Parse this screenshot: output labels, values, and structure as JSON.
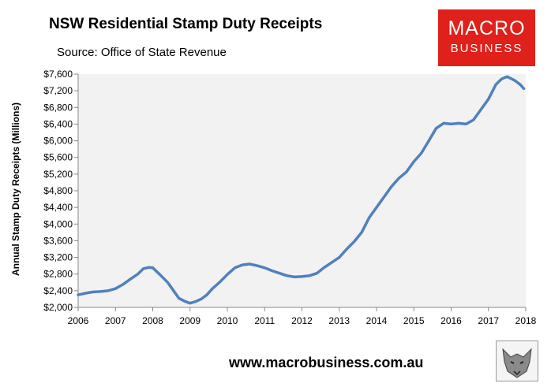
{
  "header": {
    "title": "NSW Residential Stamp Duty Receipts",
    "source": "Source: Office of State Revenue"
  },
  "logo": {
    "line1": "MACRO",
    "line2": "BUSINESS"
  },
  "footer": {
    "website": "www.macrobusiness.com.au"
  },
  "colors": {
    "series": "#4f81bd",
    "plot_bg": "#f2f2f2",
    "logo_bg": "#e0201b"
  },
  "chart_data": {
    "type": "line",
    "title": "NSW Residential Stamp Duty Receipts",
    "xlabel": "",
    "ylabel": "Annual Stamp Duty Receipts (Millions)",
    "xlim": [
      2006,
      2018
    ],
    "ylim": [
      2000,
      7600
    ],
    "x_ticks": [
      2006,
      2007,
      2008,
      2009,
      2010,
      2011,
      2012,
      2013,
      2014,
      2015,
      2016,
      2017,
      2018
    ],
    "y_ticks": [
      2000,
      2400,
      2800,
      3200,
      3600,
      4000,
      4400,
      4800,
      5200,
      5600,
      6000,
      6400,
      6800,
      7200,
      7600
    ],
    "y_tick_labels": [
      "$2,000",
      "$2,400",
      "$2,800",
      "$3,200",
      "$3,600",
      "$4,000",
      "$4,400",
      "$4,800",
      "$5,200",
      "$5,600",
      "$6,000",
      "$6,400",
      "$6,800",
      "$7,200",
      "$7,600"
    ],
    "grid": false,
    "series": [
      {
        "name": "Annual Stamp Duty Receipts",
        "x": [
          2006.0,
          2006.2,
          2006.4,
          2006.6,
          2006.8,
          2007.0,
          2007.2,
          2007.4,
          2007.6,
          2007.75,
          2007.9,
          2008.0,
          2008.2,
          2008.4,
          2008.55,
          2008.7,
          2008.85,
          2009.0,
          2009.15,
          2009.3,
          2009.45,
          2009.6,
          2009.8,
          2010.0,
          2010.2,
          2010.4,
          2010.6,
          2010.8,
          2011.0,
          2011.2,
          2011.4,
          2011.6,
          2011.8,
          2012.0,
          2012.2,
          2012.4,
          2012.6,
          2012.8,
          2013.0,
          2013.2,
          2013.4,
          2013.6,
          2013.8,
          2014.0,
          2014.2,
          2014.4,
          2014.6,
          2014.8,
          2015.0,
          2015.2,
          2015.4,
          2015.6,
          2015.8,
          2016.0,
          2016.2,
          2016.4,
          2016.6,
          2016.8,
          2017.0,
          2017.2,
          2017.35,
          2017.5,
          2017.7,
          2017.85,
          2017.95
        ],
        "values": [
          2300,
          2340,
          2370,
          2380,
          2400,
          2450,
          2550,
          2680,
          2800,
          2930,
          2960,
          2950,
          2780,
          2600,
          2410,
          2220,
          2150,
          2100,
          2140,
          2200,
          2300,
          2450,
          2610,
          2790,
          2950,
          3020,
          3040,
          3000,
          2950,
          2880,
          2820,
          2760,
          2730,
          2740,
          2760,
          2820,
          2960,
          3080,
          3200,
          3400,
          3580,
          3800,
          4150,
          4400,
          4650,
          4900,
          5100,
          5250,
          5500,
          5700,
          6000,
          6300,
          6420,
          6400,
          6420,
          6400,
          6500,
          6750,
          7000,
          7350,
          7480,
          7540,
          7450,
          7350,
          7250
        ]
      }
    ]
  }
}
